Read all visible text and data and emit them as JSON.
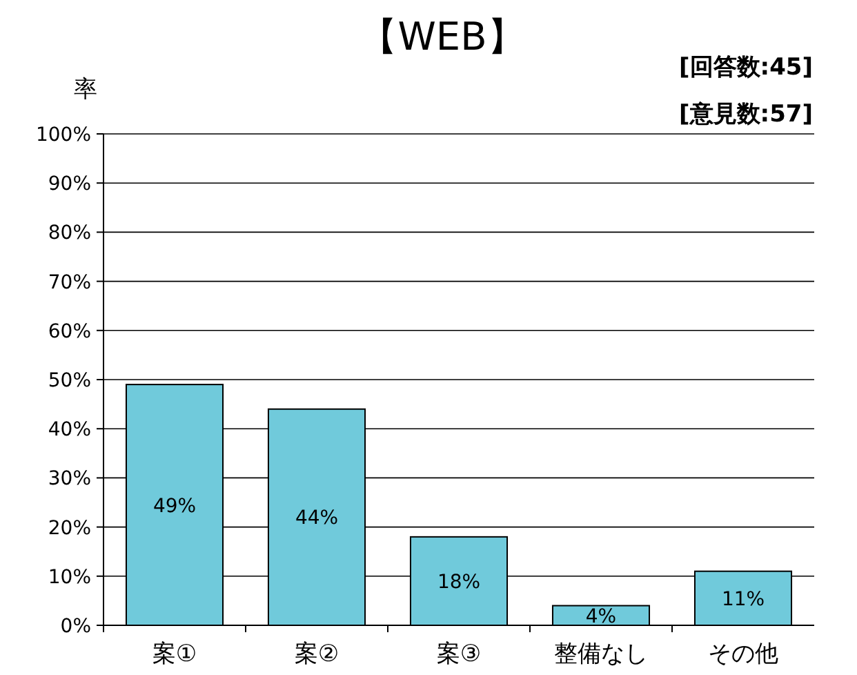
{
  "chart_data": {
    "type": "bar",
    "title": "【WEB】",
    "ylabel": "率",
    "annotations": [
      "[回答数:45]",
      "[意見数:57]"
    ],
    "categories": [
      "案①",
      "案②",
      "案③",
      "整備なし",
      "その他"
    ],
    "values": [
      49,
      44,
      18,
      4,
      11
    ],
    "value_labels": [
      "49%",
      "44%",
      "18%",
      "4%",
      "11%"
    ],
    "color": "#70cadb",
    "ylim": [
      0,
      100
    ],
    "yticks": [
      {
        "value": 0,
        "label": "0%"
      },
      {
        "value": 10,
        "label": "10%"
      },
      {
        "value": 20,
        "label": "20%"
      },
      {
        "value": 30,
        "label": "30%"
      },
      {
        "value": 40,
        "label": "40%"
      },
      {
        "value": 50,
        "label": "50%"
      },
      {
        "value": 60,
        "label": "60%"
      },
      {
        "value": 70,
        "label": "70%"
      },
      {
        "value": 80,
        "label": "80%"
      },
      {
        "value": 90,
        "label": "90%"
      },
      {
        "value": 100,
        "label": "100%"
      }
    ],
    "grid": "y"
  }
}
